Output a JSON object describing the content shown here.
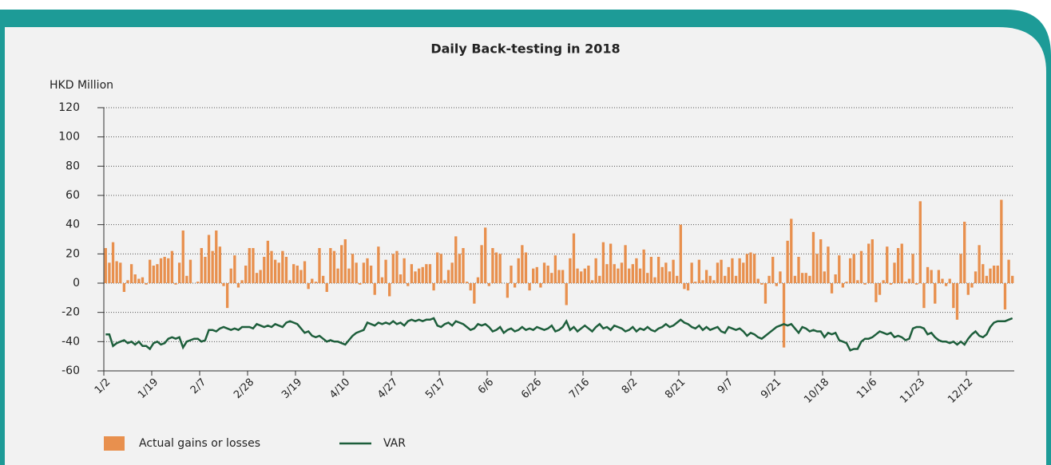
{
  "chart_data": {
    "type": "bar",
    "title": "Daily Back-testing in 2018",
    "y_label": "HKD Million",
    "categories": [
      "1/2",
      null,
      null,
      null,
      null,
      null,
      null,
      null,
      null,
      null,
      null,
      null,
      null,
      "1/19",
      null,
      null,
      null,
      null,
      null,
      null,
      null,
      null,
      null,
      null,
      null,
      null,
      "2/7",
      null,
      null,
      null,
      null,
      null,
      null,
      null,
      null,
      null,
      null,
      null,
      null,
      "2/28",
      null,
      null,
      null,
      null,
      null,
      null,
      null,
      null,
      null,
      null,
      null,
      null,
      "3/19",
      null,
      null,
      null,
      null,
      null,
      null,
      null,
      null,
      null,
      null,
      null,
      null,
      "4/10",
      null,
      null,
      null,
      null,
      null,
      null,
      null,
      null,
      null,
      null,
      null,
      null,
      "4/27",
      null,
      null,
      null,
      null,
      null,
      null,
      null,
      null,
      null,
      null,
      null,
      null,
      "5/17",
      null,
      null,
      null,
      null,
      null,
      null,
      null,
      null,
      null,
      null,
      null,
      null,
      "6/6",
      null,
      null,
      null,
      null,
      null,
      null,
      null,
      null,
      null,
      null,
      null,
      null,
      "6/26",
      null,
      null,
      null,
      null,
      null,
      null,
      null,
      null,
      null,
      null,
      null,
      null,
      "7/16",
      null,
      null,
      null,
      null,
      null,
      null,
      null,
      null,
      null,
      null,
      null,
      null,
      "8/2",
      null,
      null,
      null,
      null,
      null,
      null,
      null,
      null,
      null,
      null,
      null,
      null,
      "8/21",
      null,
      null,
      null,
      null,
      null,
      null,
      null,
      null,
      null,
      null,
      null,
      null,
      "9/7",
      null,
      null,
      null,
      null,
      null,
      null,
      null,
      null,
      null,
      null,
      null,
      null,
      "9/21",
      null,
      null,
      null,
      null,
      null,
      null,
      null,
      null,
      null,
      null,
      null,
      null,
      "10/18",
      null,
      null,
      null,
      null,
      null,
      null,
      null,
      null,
      null,
      null,
      null,
      null,
      "11/6",
      null,
      null,
      null,
      null,
      null,
      null,
      null,
      null,
      null,
      null,
      null,
      null,
      "11/23",
      null,
      null,
      null,
      null,
      null,
      null,
      null,
      null,
      null,
      null,
      null,
      null,
      "12/12",
      null,
      null,
      null,
      null,
      null,
      null,
      null,
      null,
      null,
      null,
      null,
      null
    ],
    "series": [
      {
        "name": "Actual gains or losses",
        "type": "bar",
        "color": "#e8904e",
        "values": [
          24,
          14,
          28,
          15,
          14,
          -6,
          2,
          13,
          6,
          3,
          4,
          -1,
          16,
          12,
          13,
          17,
          18,
          17,
          22,
          -1,
          14,
          36,
          5,
          16,
          0,
          1,
          24,
          18,
          33,
          22,
          36,
          25,
          -2,
          -17,
          10,
          19,
          -3,
          2,
          12,
          24,
          24,
          7,
          9,
          18,
          29,
          22,
          16,
          14,
          22,
          18,
          2,
          13,
          12,
          9,
          15,
          -4,
          3,
          1,
          24,
          5,
          -6,
          24,
          22,
          10,
          26,
          30,
          10,
          20,
          14,
          -1,
          14,
          17,
          12,
          -8,
          25,
          4,
          16,
          -9,
          20,
          22,
          6,
          17,
          -2,
          13,
          8,
          10,
          11,
          13,
          13,
          -5,
          21,
          20,
          2,
          9,
          14,
          32,
          20,
          24,
          1,
          -5,
          -14,
          4,
          26,
          38,
          -2,
          24,
          21,
          20,
          0,
          -10,
          12,
          -3,
          17,
          26,
          21,
          -5,
          10,
          11,
          -3,
          14,
          12,
          7,
          19,
          9,
          9,
          -15,
          17,
          34,
          10,
          8,
          10,
          12,
          2,
          17,
          5,
          28,
          13,
          27,
          13,
          10,
          14,
          26,
          10,
          13,
          17,
          10,
          23,
          7,
          18,
          4,
          18,
          11,
          14,
          8,
          16,
          5,
          40,
          -4,
          -5,
          14,
          1,
          16,
          2,
          9,
          5,
          2,
          14,
          16,
          5,
          11,
          17,
          5,
          17,
          14,
          20,
          21,
          20,
          3,
          -1,
          -14,
          5,
          18,
          -2,
          8,
          -44,
          29,
          44,
          5,
          18,
          7,
          7,
          5,
          35,
          20,
          30,
          8,
          25,
          -7,
          6,
          19,
          -3,
          1,
          17,
          20,
          2,
          22,
          -1,
          27,
          30,
          -13,
          -8,
          2,
          25,
          -1,
          14,
          24,
          27,
          1,
          3,
          20,
          -1,
          56,
          -17,
          11,
          9,
          -14,
          9,
          3,
          -2,
          3,
          -17,
          -25,
          20,
          42,
          -8,
          -3,
          8,
          26,
          13,
          5,
          10,
          12,
          12,
          57,
          -18,
          16,
          5
        ]
      },
      {
        "name": "VAR",
        "type": "line",
        "color": "#1d5e3b",
        "values": [
          -35,
          -35,
          -43,
          -41,
          -40,
          -39,
          -41,
          -40,
          -42,
          -40,
          -43,
          -43,
          -45,
          -41,
          -40,
          -42,
          -41,
          -38,
          -37,
          -38,
          -37,
          -44,
          -40,
          -39,
          -38,
          -38,
          -40,
          -39,
          -32,
          -32,
          -33,
          -31,
          -30,
          -31,
          -32,
          -31,
          -32,
          -30,
          -30,
          -30,
          -31,
          -28,
          -29,
          -30,
          -29,
          -30,
          -28,
          -29,
          -30,
          -27,
          -26,
          -27,
          -28,
          -31,
          -34,
          -33,
          -36,
          -37,
          -36,
          -38,
          -40,
          -39,
          -40,
          -40,
          -41,
          -42,
          -39,
          -36,
          -34,
          -33,
          -32,
          -27,
          -28,
          -29,
          -27,
          -28,
          -27,
          -28,
          -26,
          -28,
          -27,
          -29,
          -26,
          -25,
          -26,
          -25,
          -26,
          -25,
          -25,
          -24,
          -29,
          -30,
          -28,
          -27,
          -29,
          -26,
          -27,
          -28,
          -30,
          -32,
          -31,
          -28,
          -29,
          -28,
          -30,
          -33,
          -32,
          -30,
          -34,
          -32,
          -31,
          -33,
          -32,
          -30,
          -32,
          -31,
          -32,
          -30,
          -31,
          -32,
          -31,
          -29,
          -33,
          -32,
          -30,
          -26,
          -32,
          -30,
          -33,
          -31,
          -29,
          -31,
          -33,
          -30,
          -28,
          -31,
          -30,
          -32,
          -29,
          -30,
          -31,
          -33,
          -32,
          -30,
          -33,
          -31,
          -32,
          -30,
          -32,
          -33,
          -31,
          -30,
          -28,
          -30,
          -29,
          -27,
          -25,
          -27,
          -28,
          -30,
          -31,
          -29,
          -32,
          -30,
          -32,
          -31,
          -30,
          -33,
          -34,
          -30,
          -31,
          -32,
          -31,
          -33,
          -36,
          -34,
          -35,
          -37,
          -38,
          -36,
          -34,
          -32,
          -30,
          -29,
          -28,
          -29,
          -28,
          -31,
          -34,
          -30,
          -31,
          -33,
          -32,
          -33,
          -33,
          -37,
          -34,
          -35,
          -34,
          -39,
          -40,
          -41,
          -46,
          -45,
          -45,
          -40,
          -38,
          -38,
          -37,
          -35,
          -33,
          -34,
          -35,
          -34,
          -37,
          -36,
          -37,
          -39,
          -38,
          -31,
          -30,
          -30,
          -31,
          -35,
          -34,
          -37,
          -39,
          -40,
          -40,
          -41,
          -40,
          -42,
          -40,
          -42,
          -38,
          -35,
          -33,
          -36,
          -37,
          -35,
          -30,
          -27,
          -26,
          -26,
          -26,
          -25,
          -24
        ]
      }
    ],
    "ylim": [
      -60,
      120
    ],
    "yticks": [
      -60,
      -40,
      -20,
      0,
      20,
      40,
      60,
      80,
      100,
      120
    ],
    "grid": true,
    "legend": "bottom"
  }
}
